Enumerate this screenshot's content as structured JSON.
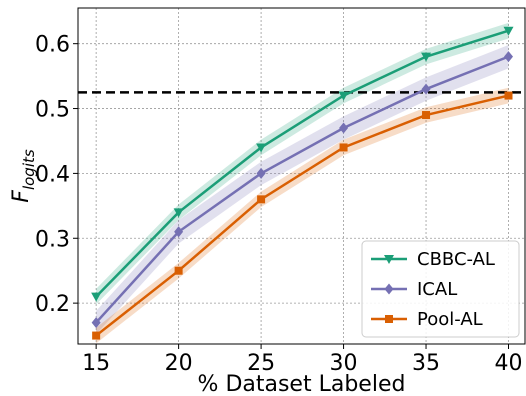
{
  "chart_data": {
    "type": "line",
    "xlabel": "% Dataset Labeled",
    "ylabel": {
      "main": "F",
      "sub": "logits"
    },
    "x": [
      15,
      20,
      25,
      30,
      35,
      40
    ],
    "xlim": [
      13.9,
      41.0
    ],
    "ylim": [
      0.137,
      0.655
    ],
    "xticks": [
      15,
      20,
      25,
      30,
      35,
      40
    ],
    "yticks": [
      0.2,
      0.3,
      0.4,
      0.5,
      0.6
    ],
    "xtick_labels": [
      "15",
      "20",
      "25",
      "30",
      "35",
      "40"
    ],
    "ytick_labels": [
      "0.2",
      "0.3",
      "0.4",
      "0.5",
      "0.6"
    ],
    "grid": true,
    "grid_style": "dotted",
    "reference_line": {
      "y": 0.525,
      "style": "dashed",
      "color": "#000000"
    },
    "legend_position": "lower-right",
    "series": [
      {
        "name": "CBBC-AL",
        "color": "#1b9e77",
        "marker": "triangle-down",
        "values": [
          0.21,
          0.34,
          0.44,
          0.52,
          0.58,
          0.62
        ],
        "band": 0.012
      },
      {
        "name": "ICAL",
        "color": "#7570b3",
        "marker": "diamond",
        "values": [
          0.17,
          0.31,
          0.4,
          0.47,
          0.53,
          0.58
        ],
        "band": 0.018
      },
      {
        "name": "Pool-AL",
        "color": "#d95f02",
        "marker": "square",
        "values": [
          0.15,
          0.25,
          0.36,
          0.44,
          0.49,
          0.52
        ],
        "band": 0.012
      }
    ]
  }
}
